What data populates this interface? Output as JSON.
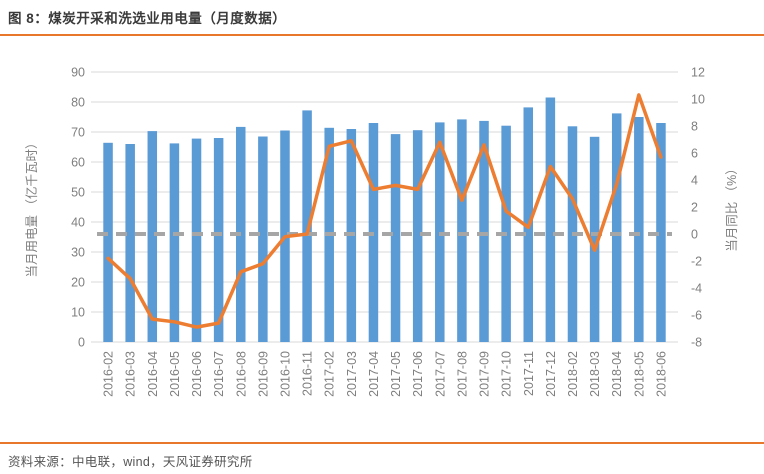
{
  "header": {
    "title": "图 8：煤炭开采和洗选业用电量（月度数据）"
  },
  "footer": {
    "source": "资料来源：中电联，wind，天风证券研究所"
  },
  "accent_color": "#E8762B",
  "chart_data": {
    "type": "bar",
    "subtype": "bar-line combo, dual axis",
    "title": "图 8：煤炭开采和洗选业用电量（月度数据）",
    "categories": [
      "2016-02",
      "2016-03",
      "2016-04",
      "2016-05",
      "2016-06",
      "2016-07",
      "2016-08",
      "2016-09",
      "2016-10",
      "2016-11",
      "2017-02",
      "2017-03",
      "2017-04",
      "2017-05",
      "2017-06",
      "2017-07",
      "2017-08",
      "2017-09",
      "2017-10",
      "2017-11",
      "2017-12",
      "2018-02",
      "2018-03",
      "2018-04",
      "2018-05",
      "2018-06"
    ],
    "series": [
      {
        "name": "当月用电量",
        "type": "bar",
        "axis": "left",
        "color": "#5B9BD5",
        "values": [
          66.4,
          66.0,
          70.3,
          66.2,
          67.8,
          68.0,
          71.7,
          68.5,
          70.5,
          77.2,
          71.4,
          71.0,
          73.0,
          69.3,
          70.6,
          73.2,
          74.2,
          73.7,
          72.1,
          78.2,
          81.5,
          71.9,
          68.4,
          76.2,
          75.0,
          73.0
        ]
      },
      {
        "name": "当月同比",
        "type": "line",
        "axis": "right",
        "color": "#ED7D31",
        "values": [
          -1.8,
          -3.3,
          -6.3,
          -6.5,
          -6.9,
          -6.6,
          -2.8,
          -2.2,
          -0.2,
          0.0,
          6.5,
          6.9,
          3.3,
          3.6,
          3.3,
          6.8,
          2.5,
          6.6,
          1.7,
          0.5,
          5.0,
          2.6,
          -1.2,
          3.7,
          10.3,
          5.7
        ]
      },
      {
        "name": "零轴虚线",
        "type": "dashed-reference-line",
        "axis": "right",
        "color": "#A6A6A6",
        "value": 0
      }
    ],
    "left_axis": {
      "title": "当月用电量 （亿千瓦时）",
      "min": 0,
      "max": 90,
      "step": 10
    },
    "right_axis": {
      "title": "当月同比 （%）",
      "min": -8,
      "max": 12,
      "step": 2
    },
    "grid": true,
    "legend": "none",
    "colors": {
      "grid": "#D9D9D9",
      "tick_text": "#7F7F7F",
      "axis_title_text": "#7F7F7F"
    }
  }
}
